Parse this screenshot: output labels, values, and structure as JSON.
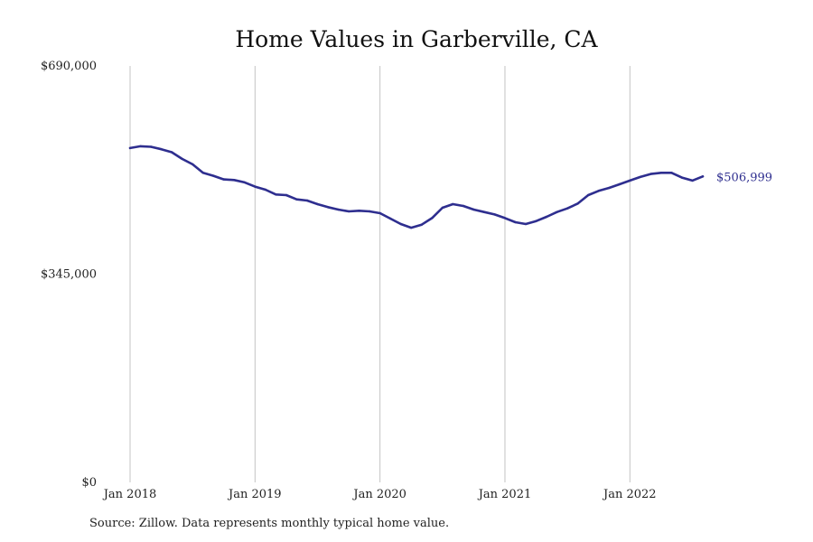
{
  "chart_data": {
    "type": "line",
    "title": "Home Values in Garberville, CA",
    "xlabel": "",
    "ylabel": "",
    "ylim": [
      0,
      690000
    ],
    "y_ticks": [
      0,
      345000,
      690000
    ],
    "y_tick_labels": [
      "$0",
      "$345,000",
      "$690,000"
    ],
    "x_ticks": [
      "2018-01",
      "2019-01",
      "2020-01",
      "2021-01",
      "2022-01"
    ],
    "x_tick_labels": [
      "Jan 2018",
      "Jan 2019",
      "Jan 2020",
      "Jan 2021",
      "Jan 2022"
    ],
    "xlim": [
      "2018-01",
      "2022-12"
    ],
    "grid": "vertical",
    "line_color": "#2e2e8f",
    "end_label": "$506,999",
    "series": [
      {
        "x": [
          "2018-01",
          "2018-02",
          "2018-03",
          "2018-04",
          "2018-05",
          "2018-06",
          "2018-07",
          "2018-08",
          "2018-09",
          "2018-10",
          "2018-11",
          "2018-12",
          "2019-01",
          "2019-02",
          "2019-03",
          "2019-04",
          "2019-05",
          "2019-06",
          "2019-07",
          "2019-08",
          "2019-09",
          "2019-10",
          "2019-11",
          "2019-12",
          "2020-01",
          "2020-02",
          "2020-03",
          "2020-04",
          "2020-05",
          "2020-06",
          "2020-07",
          "2020-08",
          "2020-09",
          "2020-10",
          "2020-11",
          "2020-12",
          "2021-01",
          "2021-02",
          "2021-03",
          "2021-04",
          "2021-05",
          "2021-06",
          "2021-07",
          "2021-08",
          "2021-09",
          "2021-10",
          "2021-11",
          "2021-12",
          "2022-01",
          "2022-02",
          "2022-03",
          "2022-04",
          "2022-05",
          "2022-06",
          "2022-07",
          "2022-08"
        ],
        "values": [
          554000,
          557000,
          556000,
          552000,
          547000,
          536000,
          527000,
          513000,
          508000,
          502000,
          501000,
          497000,
          490000,
          485000,
          477000,
          476000,
          469000,
          467000,
          461000,
          456000,
          452000,
          449000,
          450000,
          449000,
          446000,
          437000,
          428000,
          422000,
          427000,
          438000,
          455000,
          461000,
          458000,
          452000,
          448000,
          444000,
          438000,
          431000,
          428000,
          433000,
          440000,
          448000,
          454000,
          462000,
          476000,
          483000,
          488000,
          494000,
          500000,
          506000,
          511000,
          513000,
          513000,
          505000,
          500000,
          506999
        ]
      }
    ]
  },
  "footer": {
    "source": "Source: Zillow. Data represents monthly typical home value."
  }
}
